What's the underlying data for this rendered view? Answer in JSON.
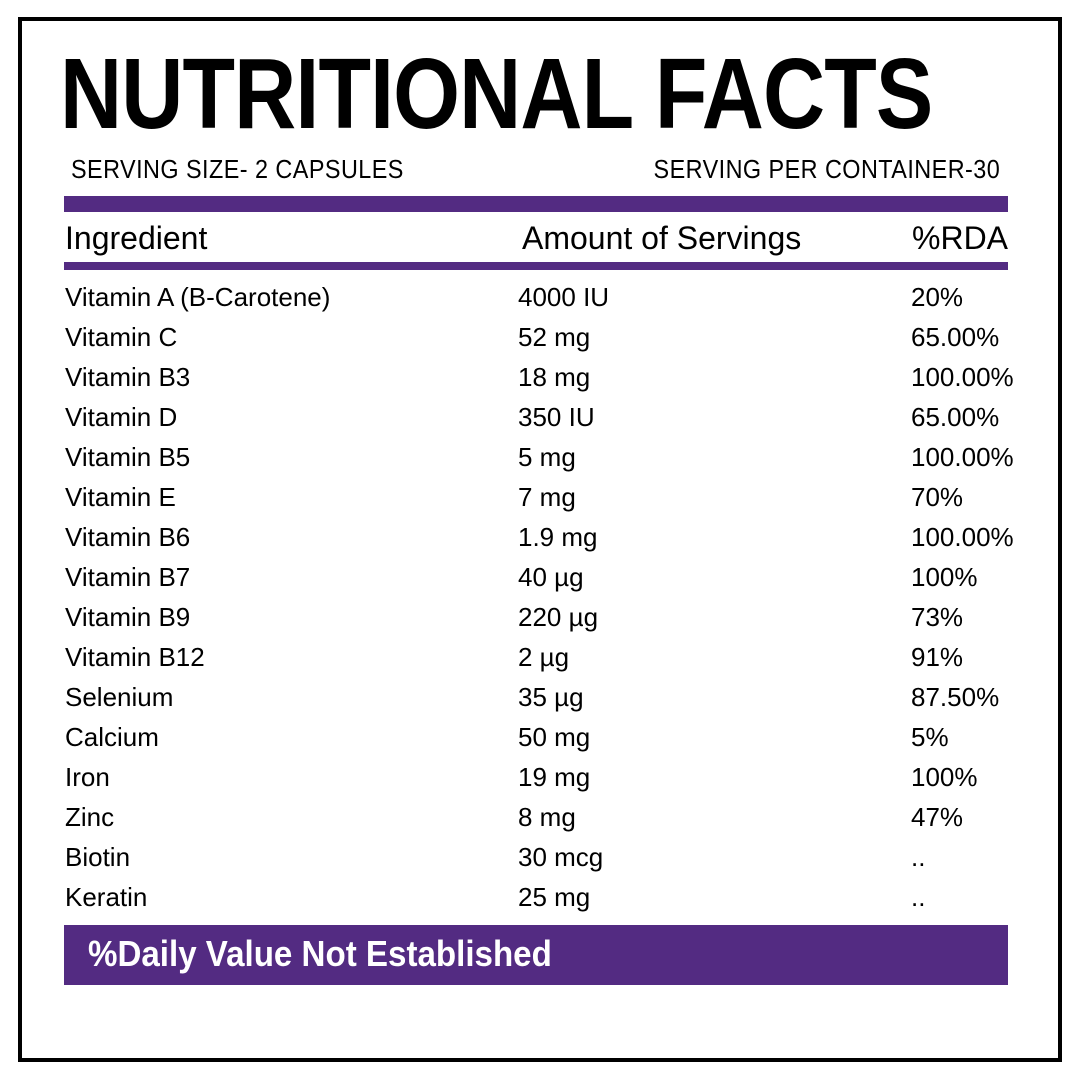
{
  "colors": {
    "accent": "#532B82",
    "border": "#000000"
  },
  "title": "NUTRITIONAL FACTS",
  "serving_size": "SERVING SIZE- 2 CAPSULES",
  "servings_per_container": "SERVING PER CONTAINER-30",
  "columns": [
    "Ingredient",
    "Amount of Servings",
    "%RDA"
  ],
  "rows": [
    [
      "Vitamin A (B-Carotene)",
      "4000 IU",
      "20%"
    ],
    [
      "Vitamin C",
      "52 mg",
      "65.00%"
    ],
    [
      "Vitamin B3",
      "18 mg",
      "100.00%"
    ],
    [
      "Vitamin D",
      "350 IU",
      "65.00%"
    ],
    [
      "Vitamin B5",
      "5 mg",
      "100.00%"
    ],
    [
      "Vitamin E",
      "7 mg",
      "70%"
    ],
    [
      "Vitamin B6",
      "1.9 mg",
      "100.00%"
    ],
    [
      "Vitamin B7",
      "40 µg",
      "100%"
    ],
    [
      "Vitamin B9",
      "220 µg",
      "73%"
    ],
    [
      "Vitamin B12",
      "2 µg",
      "91%"
    ],
    [
      "Selenium",
      "35 µg",
      "87.50%"
    ],
    [
      "Calcium",
      "50 mg",
      "5%"
    ],
    [
      "Iron",
      "19 mg",
      "100%"
    ],
    [
      "Zinc",
      "8 mg",
      "47%"
    ],
    [
      "Biotin",
      "30 mcg",
      ".."
    ],
    [
      "Keratin",
      "25 mg",
      ".."
    ]
  ],
  "footer_note": "%Daily Value Not Established"
}
